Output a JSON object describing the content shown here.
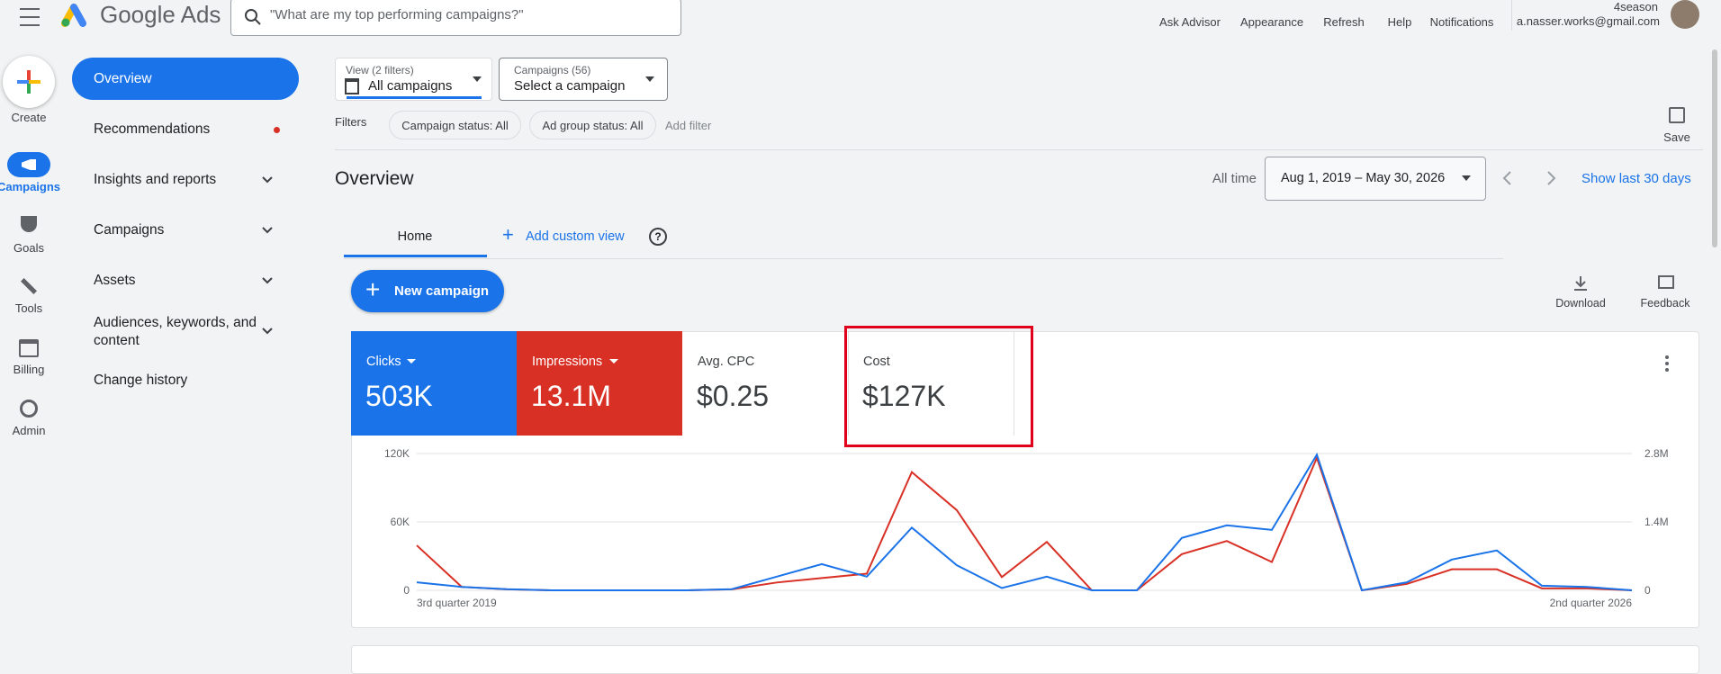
{
  "top_bar": {
    "product": "Google Ads",
    "search_placeholder": "\"What are my top performing campaigns?\"",
    "actions": [
      "Ask Advisor",
      "Appearance",
      "Refresh",
      "Help",
      "Notifications"
    ],
    "account_name": "4season",
    "account_email": "a.nasser.works@gmail.com"
  },
  "rail": [
    "Create",
    "Campaigns",
    "Goals",
    "Tools",
    "Billing",
    "Admin"
  ],
  "nav": [
    "Overview",
    "Recommendations",
    "Insights and reports",
    "Campaigns",
    "Assets",
    "Audiences, keywords, and content",
    "Change history"
  ],
  "view_filter": {
    "label": "View (2 filters)",
    "value": "All campaigns"
  },
  "campaign_filter": {
    "label": "Campaigns (56)",
    "value": "Select a campaign"
  },
  "filters": {
    "label": "Filters",
    "chips": [
      "Campaign status: All",
      "Ad group status: All"
    ],
    "add": "Add filter"
  },
  "save": "Save",
  "page_title": "Overview",
  "date": {
    "range_label": "All time",
    "range": "Aug 1, 2019 – May 30, 2026",
    "show_last": "Show last 30 days"
  },
  "tabs": [
    "Home",
    "Add custom view"
  ],
  "new_campaign": "New campaign",
  "tools": [
    "Download",
    "Feedback"
  ],
  "scorecards": [
    {
      "value": "503K"
    },
    {
      "value": "13.1M"
    },
    {
      "label": "Avg. CPC",
      "value": "$0.25"
    },
    {
      "label": "Cost",
      "value": "$127K"
    }
  ],
  "chart_data": {
    "type": "line",
    "categories": [
      "3rd quarter 2019",
      null,
      null,
      null,
      null,
      null,
      null,
      null,
      null,
      null,
      null,
      null,
      null,
      null,
      null,
      null,
      null,
      null,
      null,
      null,
      null,
      null,
      null,
      null,
      null,
      null,
      null,
      "2nd quarter 2026"
    ],
    "series": [
      {
        "name": "Clicks",
        "color": "#1a73e8",
        "values": [
          7000,
          3000,
          1000,
          0,
          0,
          0,
          0,
          1000,
          12000,
          23000,
          12000,
          55000,
          22000,
          2000,
          12000,
          0,
          0,
          46000,
          57000,
          53000,
          119000,
          0,
          7000,
          27000,
          35000,
          4000,
          3000,
          0
        ]
      },
      {
        "name": "Impressions",
        "color": "#d93025",
        "axis": "y2",
        "values": [
          920000,
          70000,
          20000,
          0,
          0,
          0,
          0,
          20000,
          160000,
          250000,
          340000,
          2420000,
          1640000,
          270000,
          990000,
          0,
          0,
          740000,
          1010000,
          580000,
          2710000,
          0,
          130000,
          430000,
          430000,
          40000,
          40000,
          0
        ]
      }
    ],
    "ylim": [
      0,
      120000
    ],
    "yticks": [
      0,
      {
        "value": 60000,
        "label": "60K"
      },
      {
        "value": 120000,
        "label": "120K"
      }
    ],
    "y2lim": [
      0,
      2800000
    ],
    "y2ticks": [
      0,
      {
        "value": 1400000,
        "label": "1.4M"
      },
      {
        "value": 2800000,
        "label": "2.8M"
      }
    ],
    "grid": true
  }
}
